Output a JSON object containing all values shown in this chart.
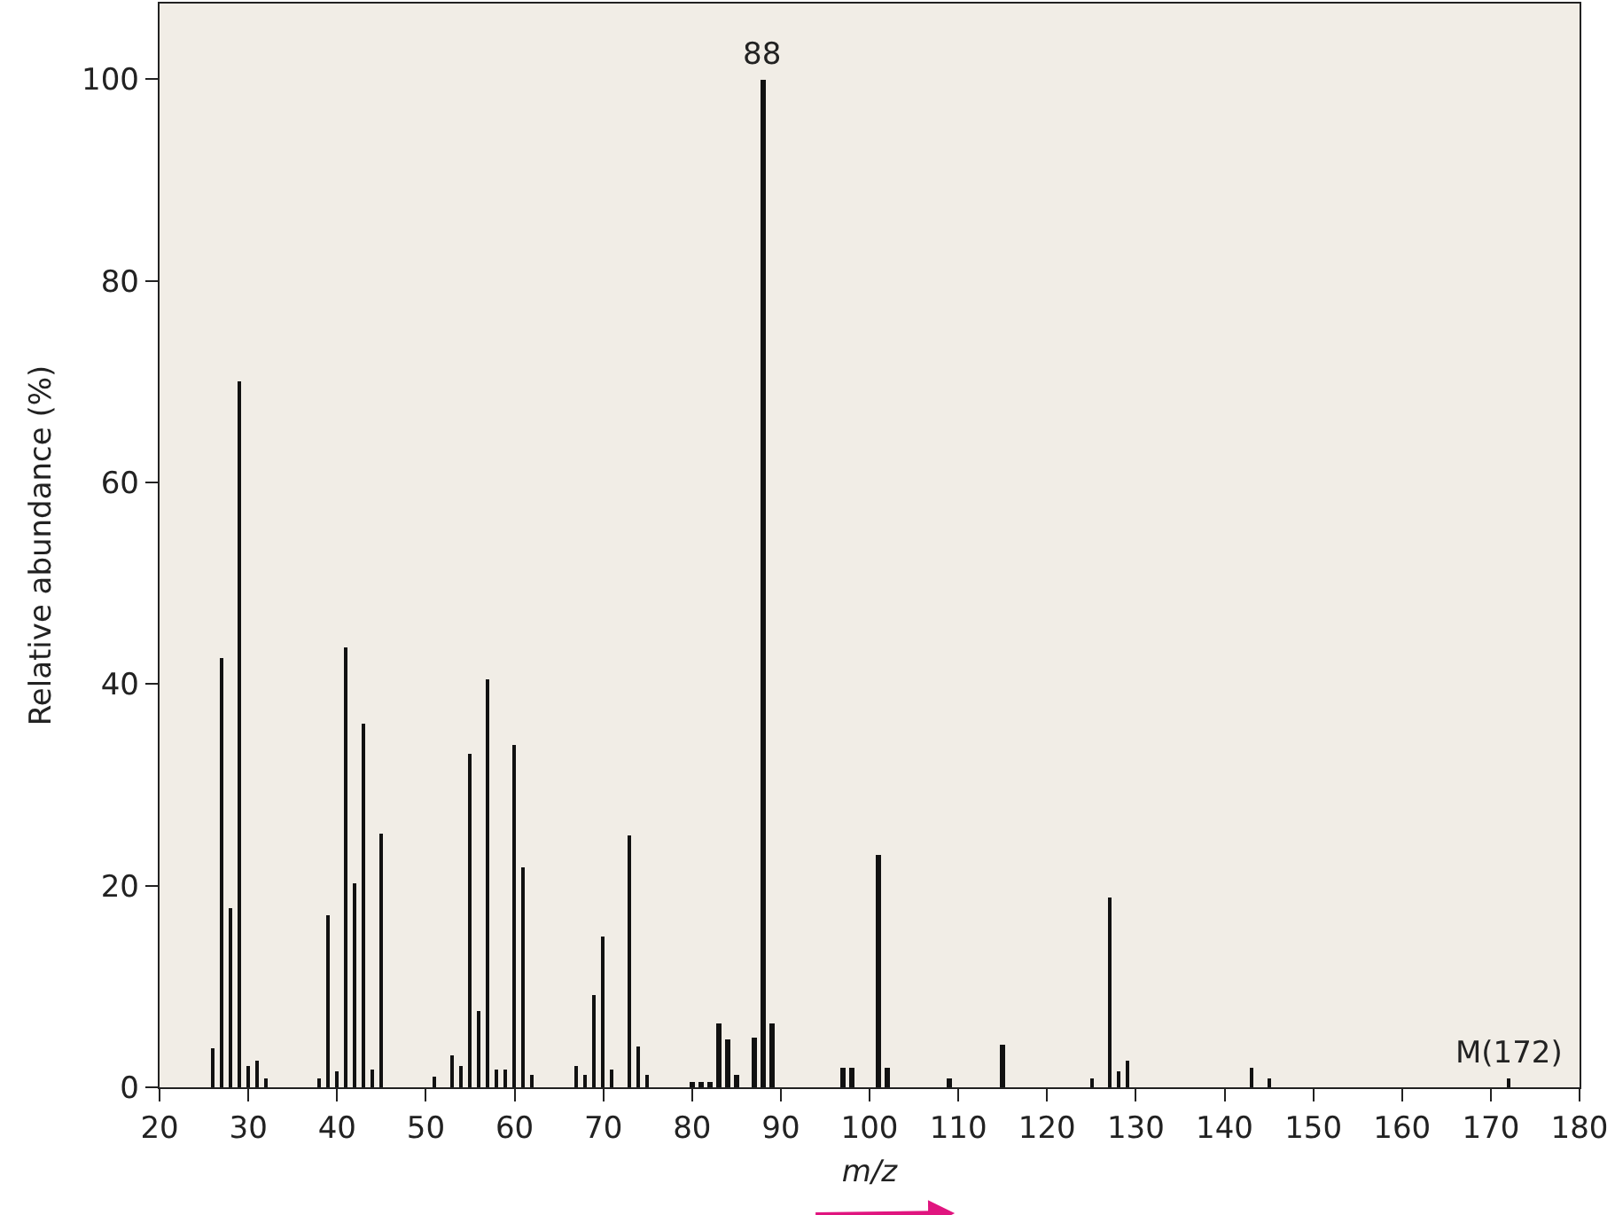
{
  "chart_data": {
    "type": "bar",
    "xlabel": "m/z",
    "ylabel": "Relative abundance (%)",
    "x": [
      26,
      27,
      28,
      29,
      30,
      31,
      32,
      38,
      39,
      40,
      41,
      42,
      43,
      44,
      45,
      51,
      53,
      54,
      55,
      56,
      57,
      58,
      59,
      60,
      61,
      62,
      67,
      68,
      69,
      70,
      71,
      73,
      74,
      75,
      80,
      81,
      82,
      83,
      84,
      85,
      87,
      88,
      89,
      97,
      98,
      101,
      102,
      109,
      115,
      125,
      127,
      128,
      129,
      143,
      145,
      172
    ],
    "values": [
      3.9,
      42.6,
      17.7,
      70,
      2.1,
      2.6,
      0.8,
      0.8,
      17,
      1.5,
      43.7,
      20.2,
      36,
      1.8,
      25.1,
      1,
      3.1,
      2.2,
      33,
      7.6,
      40.4,
      1.8,
      1.8,
      34,
      21.8,
      1.2,
      2.2,
      1.2,
      9.1,
      15,
      1.8,
      24.9,
      4,
      1.2,
      0.6,
      0.6,
      0.6,
      6.3,
      4.8,
      1.2,
      5,
      100,
      6.4,
      1.9,
      1.9,
      23.1,
      1.9,
      0.9,
      4.2,
      0.9,
      18.9,
      1.6,
      2.6,
      1.9,
      0.8,
      0.8
    ],
    "color": "#111111",
    "xlim": [
      20,
      180
    ],
    "xticks": [
      20,
      30,
      40,
      50,
      60,
      70,
      80,
      90,
      100,
      110,
      120,
      130,
      140,
      150,
      160,
      170,
      180
    ],
    "ylim": [
      0,
      107.5
    ],
    "yticks": [
      0,
      20,
      40,
      60,
      80,
      100
    ],
    "grid": false,
    "annotations": [
      {
        "text": "88",
        "x": 88,
        "y": 100
      },
      {
        "text": "M(172)",
        "x": 172,
        "y": 0.8
      }
    ]
  }
}
